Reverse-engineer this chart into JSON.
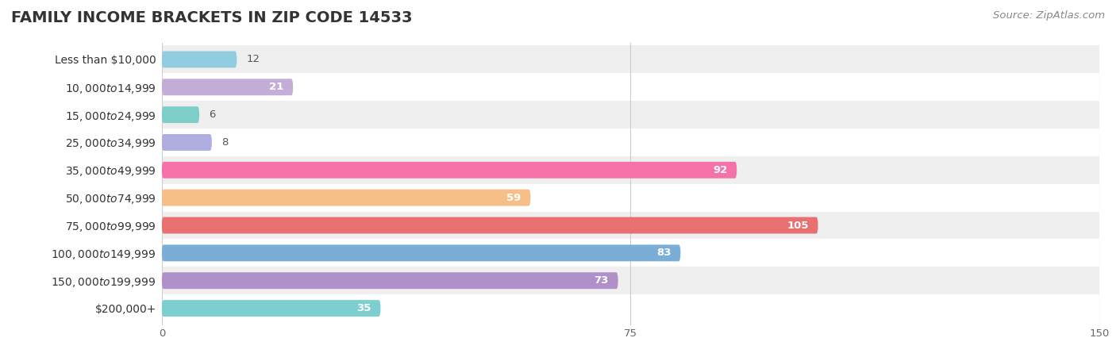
{
  "title": "FAMILY INCOME BRACKETS IN ZIP CODE 14533",
  "source": "Source: ZipAtlas.com",
  "categories": [
    "Less than $10,000",
    "$10,000 to $14,999",
    "$15,000 to $24,999",
    "$25,000 to $34,999",
    "$35,000 to $49,999",
    "$50,000 to $74,999",
    "$75,000 to $99,999",
    "$100,000 to $149,999",
    "$150,000 to $199,999",
    "$200,000+"
  ],
  "values": [
    12,
    21,
    6,
    8,
    92,
    59,
    105,
    83,
    73,
    35
  ],
  "bar_colors": [
    "#92cce0",
    "#c4aed8",
    "#7dcec8",
    "#b0aee0",
    "#f472a8",
    "#f5bf87",
    "#e87070",
    "#7aaed6",
    "#b090c8",
    "#7dcece"
  ],
  "bg_row_colors": [
    "#efefef",
    "#ffffff"
  ],
  "xlim": [
    0,
    150
  ],
  "xticks": [
    0,
    75,
    150
  ],
  "title_fontsize": 14,
  "label_fontsize": 10,
  "value_fontsize": 9.5,
  "source_fontsize": 9.5,
  "bar_height": 0.6,
  "background_color": "#ffffff",
  "value_inside_threshold": 15,
  "rounding_size": 0.3
}
